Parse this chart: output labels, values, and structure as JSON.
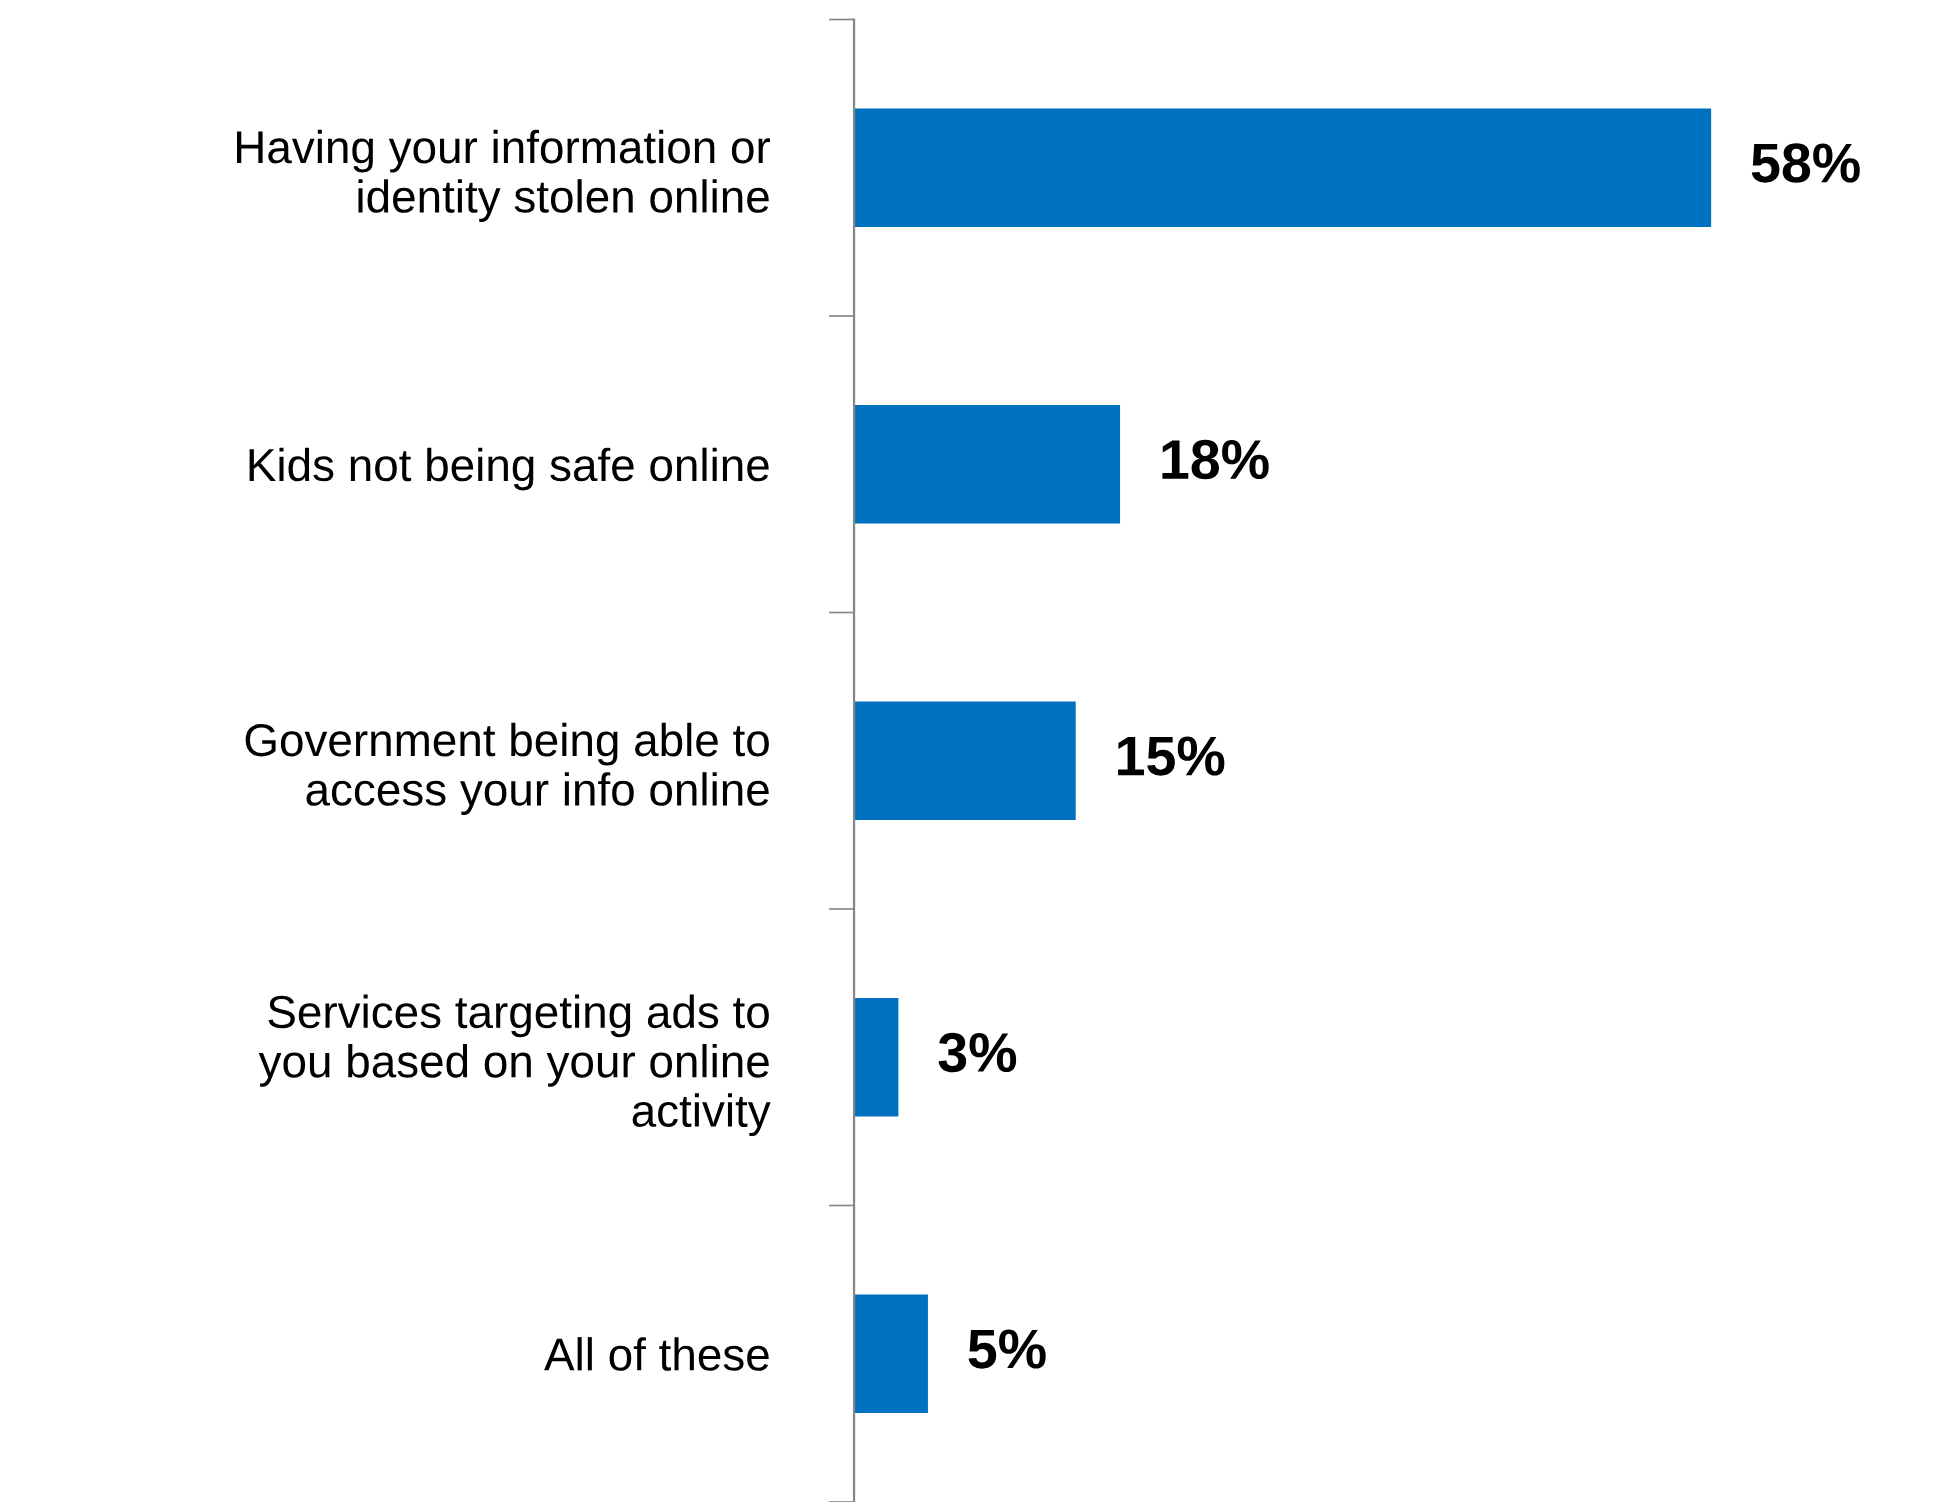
{
  "chart_data": {
    "type": "bar",
    "orientation": "horizontal",
    "categories": [
      "Having your information or\nidentity stolen online",
      "Kids not being safe online",
      "Government being able to\naccess your info online",
      "Services targeting ads to\nyou based on your online\nactivity",
      "All of these"
    ],
    "values": [
      58,
      18,
      15,
      3,
      5
    ],
    "value_labels": [
      "58%",
      "18%",
      "15%",
      "3%",
      "5%"
    ],
    "color": "#0070c0",
    "grid": false,
    "legend": false,
    "tick_labels": "y"
  }
}
